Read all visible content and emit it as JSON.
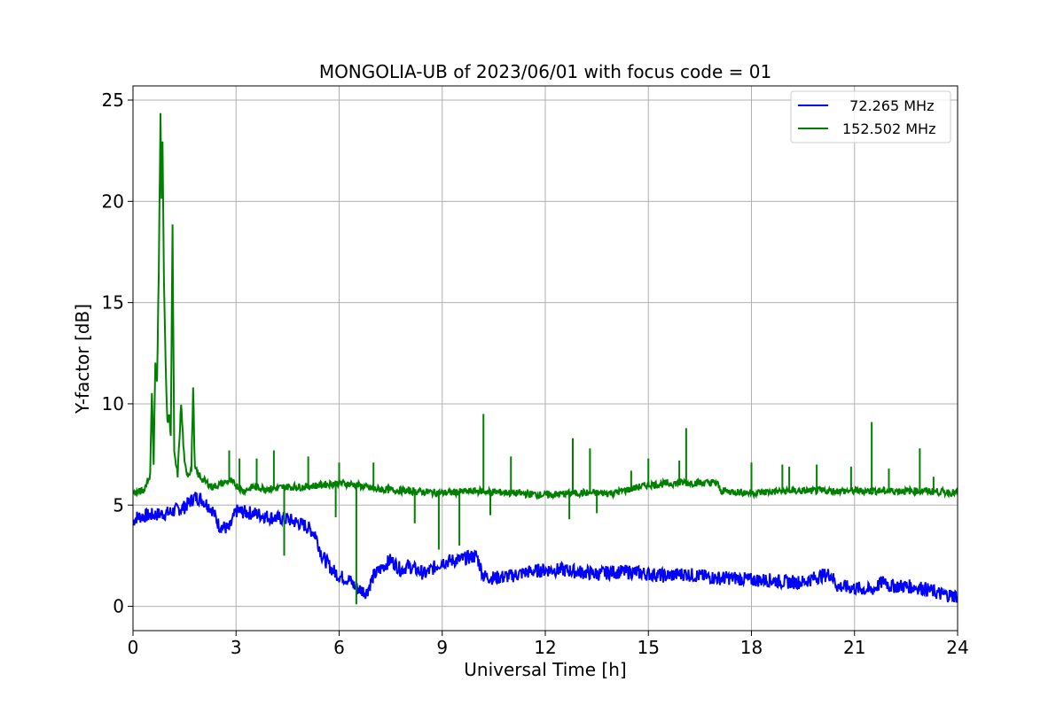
{
  "chart_data": {
    "type": "line",
    "title": "MONGOLIA-UB of 2023/06/01 with focus code = 01",
    "xlabel": "Universal Time [h]",
    "ylabel": "Y-factor [dB]",
    "xlim": [
      0,
      24
    ],
    "ylim": [
      -1.2,
      25.7
    ],
    "xticks": [
      0,
      3,
      6,
      9,
      12,
      15,
      18,
      21,
      24
    ],
    "yticks": [
      0,
      5,
      10,
      15,
      20,
      25
    ],
    "grid": true,
    "legend_position": "top-right",
    "series": [
      {
        "name": "  72.265 MHz",
        "color": "#0000ff",
        "x": [
          0,
          0.1,
          0.5,
          1.0,
          1.5,
          1.8,
          2.0,
          2.3,
          2.5,
          2.8,
          3.0,
          3.5,
          4.0,
          4.5,
          5.0,
          5.3,
          5.5,
          5.8,
          6.0,
          6.3,
          6.5,
          6.8,
          7.0,
          7.3,
          7.5,
          7.8,
          8.0,
          8.5,
          9.0,
          9.5,
          10.0,
          10.2,
          10.5,
          11.0,
          11.5,
          12.0,
          12.5,
          13.0,
          13.5,
          14.0,
          14.5,
          15.0,
          15.5,
          16.0,
          16.5,
          17.0,
          17.5,
          18.0,
          18.5,
          19.0,
          19.5,
          20.0,
          20.3,
          20.5,
          21.0,
          21.5,
          21.9,
          22.0,
          22.5,
          23.0,
          23.5,
          24.0
        ],
        "values": [
          4.2,
          4.4,
          4.5,
          4.6,
          4.9,
          5.4,
          5.3,
          4.8,
          4.0,
          3.8,
          4.7,
          4.6,
          4.4,
          4.3,
          4.0,
          3.6,
          2.5,
          1.8,
          1.5,
          1.3,
          0.9,
          0.7,
          1.5,
          2.0,
          2.3,
          1.8,
          2.0,
          1.6,
          2.2,
          2.3,
          2.5,
          1.5,
          1.4,
          1.5,
          1.7,
          1.8,
          1.8,
          1.7,
          1.6,
          1.7,
          1.7,
          1.6,
          1.5,
          1.6,
          1.5,
          1.4,
          1.4,
          1.3,
          1.3,
          1.2,
          1.2,
          1.5,
          1.6,
          1.0,
          0.9,
          0.8,
          1.3,
          1.0,
          1.0,
          0.9,
          0.6,
          0.5
        ]
      },
      {
        "name": "152.502 MHz",
        "color": "#008000",
        "x": [
          0,
          0.3,
          0.5,
          0.55,
          0.6,
          0.65,
          0.7,
          0.75,
          0.8,
          0.83,
          0.86,
          0.9,
          0.95,
          1.0,
          1.05,
          1.1,
          1.15,
          1.2,
          1.3,
          1.4,
          1.5,
          1.6,
          1.7,
          1.75,
          1.8,
          1.9,
          2.0,
          2.3,
          2.5,
          2.8,
          3.0,
          3.2,
          3.5,
          4.0,
          4.5,
          5.0,
          5.5,
          6.0,
          6.5,
          7.0,
          8.0,
          9.0,
          10.0,
          11.0,
          12.0,
          13.0,
          14.0,
          15.0,
          16.0,
          17.0,
          17.1,
          18.0,
          19.0,
          20.0,
          21.0,
          22.0,
          23.0,
          24.0
        ],
        "values": [
          5.6,
          5.7,
          6.5,
          10.7,
          7.0,
          12.0,
          11.0,
          16.5,
          24.5,
          20.0,
          23.0,
          16.0,
          12.0,
          9.0,
          9.5,
          8.5,
          18.7,
          7.5,
          6.5,
          10.0,
          7.0,
          6.5,
          6.8,
          10.8,
          6.8,
          6.5,
          6.3,
          5.9,
          6.0,
          6.2,
          6.0,
          5.7,
          5.9,
          5.8,
          5.9,
          5.9,
          6.0,
          6.1,
          6.0,
          5.8,
          5.7,
          5.6,
          5.7,
          5.6,
          5.5,
          5.6,
          5.6,
          6.0,
          6.1,
          6.1,
          5.7,
          5.6,
          5.7,
          5.7,
          5.7,
          5.7,
          5.7,
          5.6
        ]
      }
    ],
    "spikes": [
      {
        "series": 1,
        "x": [
          2.8,
          3.1,
          3.6,
          4.1,
          5.1,
          6.0,
          7.0,
          10.2,
          11.0,
          12.8,
          13.3,
          14.5,
          15.0,
          15.9,
          16.1,
          18.0,
          18.9,
          19.1,
          19.9,
          20.9,
          21.5,
          22.0,
          22.9,
          23.3
        ],
        "values": [
          7.7,
          7.3,
          7.3,
          7.7,
          7.4,
          7.1,
          7.1,
          9.5,
          7.4,
          8.3,
          7.8,
          6.7,
          7.3,
          7.2,
          8.8,
          7.1,
          7.0,
          6.9,
          7.0,
          6.9,
          9.1,
          6.8,
          7.8,
          6.4
        ]
      },
      {
        "series": 1,
        "x": [
          4.4,
          5.9,
          6.5,
          8.2,
          8.9,
          9.5,
          10.4,
          12.7,
          13.5
        ],
        "values": [
          2.5,
          4.4,
          0.1,
          4.1,
          2.8,
          3.0,
          4.5,
          4.3,
          4.6
        ]
      }
    ]
  }
}
